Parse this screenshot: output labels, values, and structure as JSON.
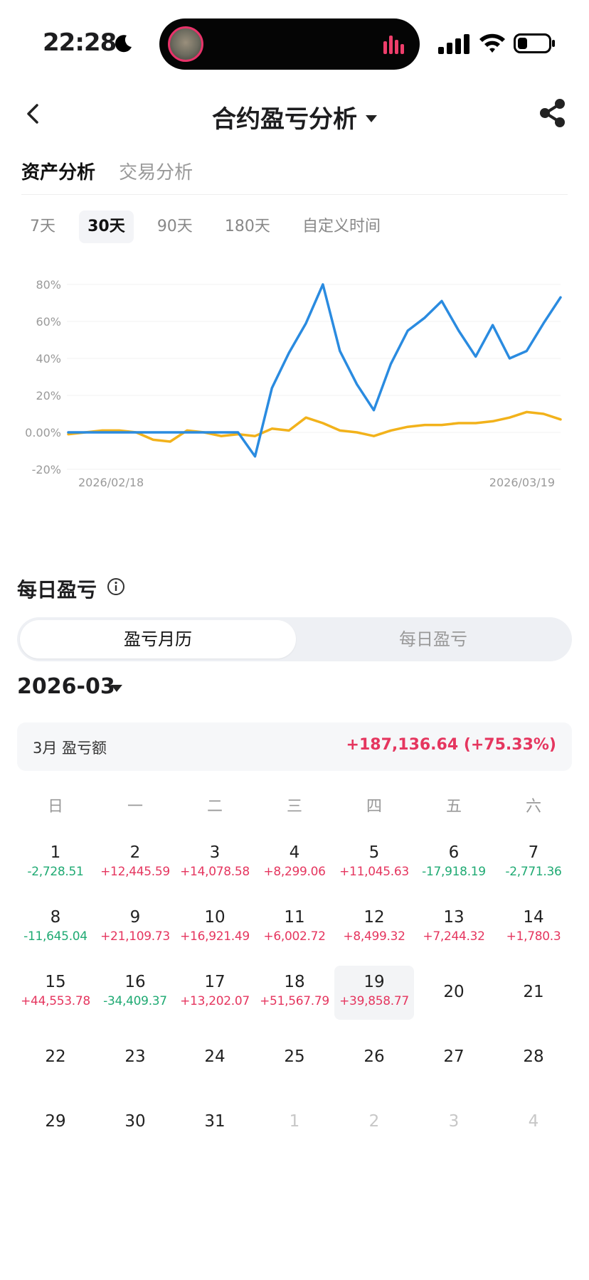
{
  "status_bar": {
    "time": "22:28"
  },
  "nav": {
    "title": "合约盈亏分析"
  },
  "tabs": [
    {
      "label": "资产分析",
      "active": true
    },
    {
      "label": "交易分析",
      "active": false
    }
  ],
  "ranges": [
    {
      "label": "7天",
      "active": false
    },
    {
      "label": "30天",
      "active": true
    },
    {
      "label": "90天",
      "active": false
    },
    {
      "label": "180天",
      "active": false
    },
    {
      "label": "自定义时间",
      "active": false
    }
  ],
  "chart_data": {
    "type": "line",
    "title": "",
    "xlabel": "",
    "ylabel": "",
    "ylim": [
      -0.2,
      0.8
    ],
    "y_ticks": [
      "80%",
      "60%",
      "40%",
      "20%",
      "0.00%",
      "-20%"
    ],
    "x_tick_labels": [
      "2026/02/18",
      "2026/03/19"
    ],
    "grid": true,
    "x": [
      "2026/02/18",
      "2026/02/19",
      "2026/02/20",
      "2026/02/21",
      "2026/02/22",
      "2026/02/23",
      "2026/02/24",
      "2026/02/25",
      "2026/02/26",
      "2026/02/27",
      "2026/02/28",
      "2026/03/01",
      "2026/03/02",
      "2026/03/03",
      "2026/03/04",
      "2026/03/05",
      "2026/03/06",
      "2026/03/07",
      "2026/03/08",
      "2026/03/09",
      "2026/03/10",
      "2026/03/11",
      "2026/03/12",
      "2026/03/13",
      "2026/03/14",
      "2026/03/15",
      "2026/03/16",
      "2026/03/17",
      "2026/03/18",
      "2026/03/19"
    ],
    "series": [
      {
        "color": "#2a8be0",
        "values": [
          0.0,
          0.0,
          0.0,
          0.0,
          0.0,
          0.0,
          0.0,
          0.0,
          0.0,
          0.0,
          0.0,
          -0.13,
          0.24,
          0.43,
          0.59,
          0.8,
          0.44,
          0.26,
          0.12,
          0.37,
          0.55,
          0.62,
          0.71,
          0.55,
          0.41,
          0.58,
          0.4,
          0.44,
          0.59,
          0.73
        ]
      },
      {
        "color": "#f2b21b",
        "values": [
          -0.01,
          0.0,
          0.01,
          0.01,
          0.0,
          -0.04,
          -0.05,
          0.01,
          0.0,
          -0.02,
          -0.01,
          -0.02,
          0.02,
          0.01,
          0.08,
          0.05,
          0.01,
          0.0,
          -0.02,
          0.01,
          0.03,
          0.04,
          0.04,
          0.05,
          0.05,
          0.06,
          0.08,
          0.11,
          0.1,
          0.07
        ]
      }
    ]
  },
  "daily": {
    "title": "每日盈亏",
    "segments": [
      {
        "label": "盈亏月历",
        "active": true
      },
      {
        "label": "每日盈亏",
        "active": false
      }
    ],
    "month": "2026-03",
    "summary_label": "3月 盈亏额",
    "summary_value": "+187,136.64 (+75.33%)",
    "weekdays": [
      "日",
      "一",
      "二",
      "三",
      "四",
      "五",
      "六"
    ],
    "weeks": [
      [
        {
          "day": "1",
          "pnl": "-2,728.51",
          "sign": "neg"
        },
        {
          "day": "2",
          "pnl": "+12,445.59",
          "sign": "pos"
        },
        {
          "day": "3",
          "pnl": "+14,078.58",
          "sign": "pos"
        },
        {
          "day": "4",
          "pnl": "+8,299.06",
          "sign": "pos"
        },
        {
          "day": "5",
          "pnl": "+11,045.63",
          "sign": "pos"
        },
        {
          "day": "6",
          "pnl": "-17,918.19",
          "sign": "neg"
        },
        {
          "day": "7",
          "pnl": "-2,771.36",
          "sign": "neg"
        }
      ],
      [
        {
          "day": "8",
          "pnl": "-11,645.04",
          "sign": "neg"
        },
        {
          "day": "9",
          "pnl": "+21,109.73",
          "sign": "pos"
        },
        {
          "day": "10",
          "pnl": "+16,921.49",
          "sign": "pos"
        },
        {
          "day": "11",
          "pnl": "+6,002.72",
          "sign": "pos"
        },
        {
          "day": "12",
          "pnl": "+8,499.32",
          "sign": "pos"
        },
        {
          "day": "13",
          "pnl": "+7,244.32",
          "sign": "pos"
        },
        {
          "day": "14",
          "pnl": "+1,780.3",
          "sign": "pos"
        }
      ],
      [
        {
          "day": "15",
          "pnl": "+44,553.78",
          "sign": "pos"
        },
        {
          "day": "16",
          "pnl": "-34,409.37",
          "sign": "neg"
        },
        {
          "day": "17",
          "pnl": "+13,202.07",
          "sign": "pos"
        },
        {
          "day": "18",
          "pnl": "+51,567.79",
          "sign": "pos"
        },
        {
          "day": "19",
          "pnl": "+39,858.77",
          "sign": "pos",
          "today": true
        },
        {
          "day": "20"
        },
        {
          "day": "21"
        }
      ],
      [
        {
          "day": "22"
        },
        {
          "day": "23"
        },
        {
          "day": "24"
        },
        {
          "day": "25"
        },
        {
          "day": "26"
        },
        {
          "day": "27"
        },
        {
          "day": "28"
        }
      ],
      [
        {
          "day": "29"
        },
        {
          "day": "30"
        },
        {
          "day": "31"
        },
        {
          "day": "1",
          "muted": true
        },
        {
          "day": "2",
          "muted": true
        },
        {
          "day": "3",
          "muted": true
        },
        {
          "day": "4",
          "muted": true
        }
      ]
    ]
  },
  "colors": {
    "positive": "#e5365f",
    "negative": "#1faa73",
    "line_primary": "#2a8be0",
    "line_secondary": "#f2b21b"
  }
}
